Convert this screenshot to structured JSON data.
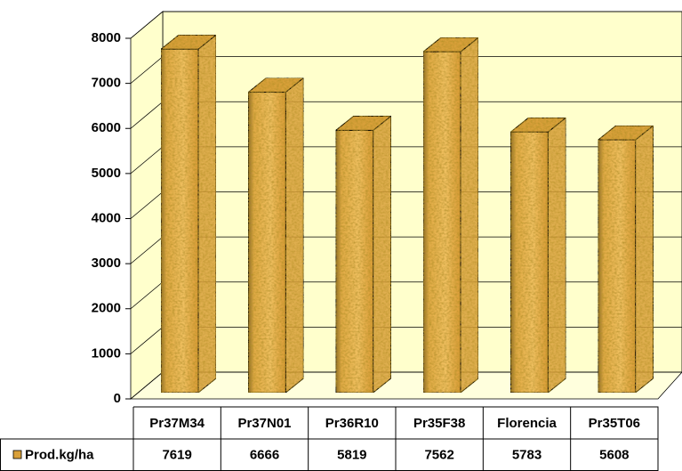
{
  "chart_data": {
    "type": "bar3d",
    "categories": [
      "Pr37M34",
      "Pr37N01",
      "Pr36R10",
      "Pr35F38",
      "Florencia",
      "Pr35T06"
    ],
    "series": [
      {
        "name": "Prod.kg/ha",
        "color": "#d9a03a",
        "values": [
          7619,
          6666,
          5819,
          7562,
          5783,
          5608
        ]
      }
    ],
    "ylim": [
      0,
      8000
    ],
    "yticks": [
      0,
      1000,
      2000,
      3000,
      4000,
      5000,
      6000,
      7000,
      8000
    ],
    "grid": true,
    "data_table": true
  }
}
